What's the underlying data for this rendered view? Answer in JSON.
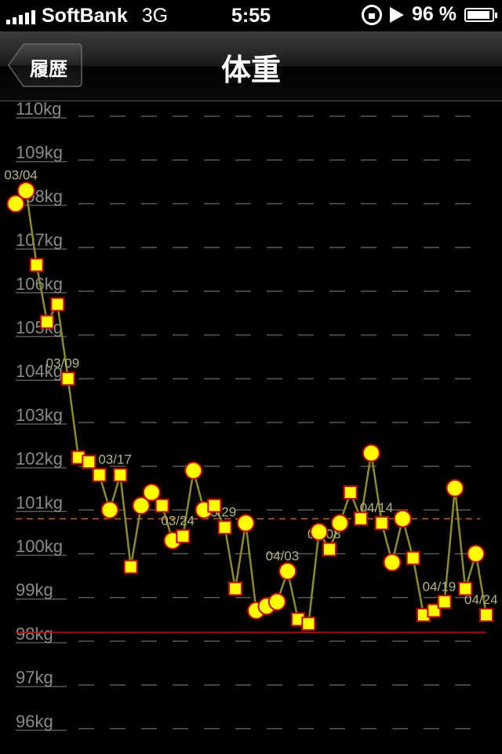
{
  "status": {
    "carrier": "SoftBank",
    "network": "3G",
    "time": "5:55",
    "battery": "96 %",
    "signal_icon": "signal-bars-icon",
    "lock_icon": "rotation-lock-icon",
    "play_icon": "play-icon",
    "battery_icon": "battery-icon"
  },
  "nav": {
    "back_label": "履歴",
    "title": "体重"
  },
  "colors": {
    "line": "#8c8c28",
    "marker_fill": "#ffff00",
    "marker_stroke": "#cc0000",
    "goal_line": "#cc0000",
    "avg_line": "#c86414",
    "grid": "#5a5a5a"
  },
  "chart_data": {
    "type": "line",
    "y_unit": "kg",
    "ylim": [
      95.8,
      110.2
    ],
    "y_ticks": [
      "110kg",
      "109kg",
      "108kg",
      "107kg",
      "106kg",
      "105kg",
      "104kg",
      "103kg",
      "102kg",
      "101kg",
      "100kg",
      "99kg",
      "98kg",
      "97kg",
      "96kg"
    ],
    "grid": true,
    "goal_line": 98.2,
    "average_line": 100.8,
    "points": [
      {
        "value": 108.0,
        "marker": "circle"
      },
      {
        "value": 108.3,
        "marker": "circle"
      },
      {
        "value": 106.6,
        "marker": "square"
      },
      {
        "value": 105.3,
        "marker": "square"
      },
      {
        "value": 105.7,
        "marker": "square"
      },
      {
        "value": 104.0,
        "marker": "square"
      },
      {
        "value": 102.2,
        "marker": "square"
      },
      {
        "value": 102.1,
        "marker": "square"
      },
      {
        "value": 101.8,
        "marker": "square"
      },
      {
        "value": 101.0,
        "marker": "circle"
      },
      {
        "value": 101.8,
        "marker": "square"
      },
      {
        "value": 99.7,
        "marker": "square"
      },
      {
        "value": 101.1,
        "marker": "circle"
      },
      {
        "value": 101.4,
        "marker": "circle"
      },
      {
        "value": 101.1,
        "marker": "square"
      },
      {
        "value": 100.3,
        "marker": "circle"
      },
      {
        "value": 100.4,
        "marker": "square"
      },
      {
        "value": 101.9,
        "marker": "circle"
      },
      {
        "value": 101.0,
        "marker": "circle"
      },
      {
        "value": 101.1,
        "marker": "square"
      },
      {
        "value": 100.6,
        "marker": "square"
      },
      {
        "value": 99.2,
        "marker": "square"
      },
      {
        "value": 100.7,
        "marker": "circle"
      },
      {
        "value": 98.7,
        "marker": "circle"
      },
      {
        "value": 98.8,
        "marker": "circle"
      },
      {
        "value": 98.9,
        "marker": "circle"
      },
      {
        "value": 99.6,
        "marker": "circle"
      },
      {
        "value": 98.5,
        "marker": "square"
      },
      {
        "value": 98.4,
        "marker": "square"
      },
      {
        "value": 100.5,
        "marker": "circle"
      },
      {
        "value": 100.1,
        "marker": "square"
      },
      {
        "value": 100.7,
        "marker": "circle"
      },
      {
        "value": 101.4,
        "marker": "square"
      },
      {
        "value": 100.8,
        "marker": "square"
      },
      {
        "value": 102.3,
        "marker": "circle"
      },
      {
        "value": 100.7,
        "marker": "square"
      },
      {
        "value": 99.8,
        "marker": "circle"
      },
      {
        "value": 100.8,
        "marker": "circle"
      },
      {
        "value": 99.9,
        "marker": "square"
      },
      {
        "value": 98.6,
        "marker": "square"
      },
      {
        "value": 98.7,
        "marker": "square"
      },
      {
        "value": 98.9,
        "marker": "square"
      },
      {
        "value": 101.5,
        "marker": "circle"
      },
      {
        "value": 99.2,
        "marker": "square"
      },
      {
        "value": 100.0,
        "marker": "circle"
      },
      {
        "value": 98.6,
        "marker": "square"
      }
    ],
    "date_labels": [
      {
        "text": "03/04",
        "point": 1
      },
      {
        "text": "03/09",
        "point": 5
      },
      {
        "text": "03/17",
        "point": 10
      },
      {
        "text": "03/24",
        "point": 16
      },
      {
        "text": "03/29",
        "point": 20
      },
      {
        "text": "04/03",
        "point": 26
      },
      {
        "text": "04/08",
        "point": 30
      },
      {
        "text": "04/14",
        "point": 35
      },
      {
        "text": "04/19",
        "point": 41
      },
      {
        "text": "04/24",
        "point": 45
      }
    ]
  }
}
